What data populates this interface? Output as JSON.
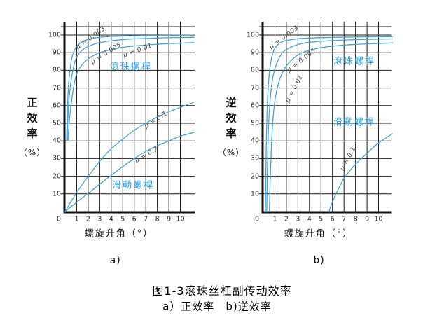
{
  "figure": {
    "caption_line1": "图1-3滚珠丝杠副传动效率",
    "caption_line2": "a）正效率　b)逆效率"
  },
  "colors": {
    "curve": "#45a3da",
    "screw_label": "#29a3e3",
    "grid": "#1c1c1c",
    "axis": "#111111",
    "tick_text": "#222222",
    "mu_text": "#3d3d3d"
  },
  "chart_data": [
    {
      "type": "line",
      "title": "a)",
      "sub_label": "a)",
      "ylabel": "正效率（%）",
      "ylabel_chars": [
        "正",
        "效",
        "率"
      ],
      "ylabel_unit": "（%）",
      "xlabel": "螺旋升角（°）",
      "x_ticks": [
        "0",
        "1",
        "2",
        "3",
        "4",
        "5",
        "6",
        "7",
        "8",
        "9",
        "10"
      ],
      "y_ticks": [
        "10",
        "20",
        "30",
        "40",
        "50",
        "60",
        "70",
        "80",
        "90",
        "100"
      ],
      "xlim": [
        0,
        11.2
      ],
      "ylim": [
        0,
        105
      ],
      "grid": true,
      "legend_position": "none",
      "series": [
        {
          "name": "μ = 0.003",
          "points": [
            [
              0.13,
              40
            ],
            [
              0.17,
              52
            ],
            [
              0.22,
              62
            ],
            [
              0.3,
              72
            ],
            [
              0.4,
              79
            ],
            [
              0.55,
              86
            ],
            [
              0.75,
              90.5
            ],
            [
              1,
              93.5
            ],
            [
              1.5,
              96.3
            ],
            [
              2,
              97.5
            ],
            [
              2.5,
              98.2
            ],
            [
              3,
              98.7
            ],
            [
              4,
              99.2
            ],
            [
              5,
              99.4
            ],
            [
              6,
              99.6
            ],
            [
              8,
              99.8
            ],
            [
              10,
              99.9
            ],
            [
              11.2,
              99.9
            ]
          ]
        },
        {
          "name": "μ = 0.005",
          "points": [
            [
              0.17,
              40
            ],
            [
              0.22,
              50
            ],
            [
              0.3,
              60
            ],
            [
              0.4,
              68
            ],
            [
              0.55,
              75.5
            ],
            [
              0.75,
              82.5
            ],
            [
              1,
              87.5
            ],
            [
              1.5,
              91.5
            ],
            [
              2,
              93.5
            ],
            [
              2.5,
              94.8
            ],
            [
              3,
              95.7
            ],
            [
              4,
              96.8
            ],
            [
              5,
              97.4
            ],
            [
              6,
              97.8
            ],
            [
              8,
              98.3
            ],
            [
              10,
              98.6
            ],
            [
              11.2,
              98.7
            ]
          ]
        },
        {
          "name": "μ = 0.01",
          "points": [
            [
              0.24,
              40
            ],
            [
              0.3,
              46
            ],
            [
              0.4,
              54
            ],
            [
              0.55,
              62
            ],
            [
              0.75,
              71
            ],
            [
              1,
              78
            ],
            [
              1.5,
              83.5
            ],
            [
              2,
              86.5
            ],
            [
              2.5,
              88.5
            ],
            [
              3,
              90
            ],
            [
              4,
              91.8
            ],
            [
              5,
              93
            ],
            [
              6,
              93.8
            ],
            [
              8,
              94.8
            ],
            [
              10,
              95.4
            ],
            [
              11.2,
              95.7
            ]
          ]
        },
        {
          "name": "μ = 0.1",
          "points": [
            [
              0,
              0
            ],
            [
              0.5,
              5.5
            ],
            [
              1,
              10.8
            ],
            [
              1.5,
              15.5
            ],
            [
              2,
              20
            ],
            [
              2.5,
              24.3
            ],
            [
              3,
              28.5
            ],
            [
              4,
              35.5
            ],
            [
              5,
              41
            ],
            [
              6,
              46
            ],
            [
              7,
              50
            ],
            [
              8,
              53.5
            ],
            [
              9,
              56.5
            ],
            [
              10,
              59
            ],
            [
              11.2,
              62
            ]
          ]
        },
        {
          "name": "μ = 0.2",
          "points": [
            [
              0,
              0
            ],
            [
              1,
              5.3
            ],
            [
              2,
              10.3
            ],
            [
              3,
              15.5
            ],
            [
              4,
              20.5
            ],
            [
              5,
              25.5
            ],
            [
              6,
              30
            ],
            [
              7,
              34
            ],
            [
              8,
              37.3
            ],
            [
              9,
              40
            ],
            [
              10,
              42.7
            ],
            [
              11.2,
              44.8
            ]
          ]
        }
      ],
      "series_labels": [
        {
          "text": "μ = 0.003",
          "x": 2.25,
          "y": 98.0,
          "rot": -36
        },
        {
          "text": "μ = 0.005",
          "x": 3.6,
          "y": 89.3,
          "rot": -33
        },
        {
          "text": "μ = 0.01",
          "x": 6.3,
          "y": 90.9,
          "rot": -20
        },
        {
          "text": "μ = 0.1",
          "x": 7.9,
          "y": 51.6,
          "rot": -33
        },
        {
          "text": "μ = 0.2",
          "x": 7.1,
          "y": 31.7,
          "rot": -30
        }
      ],
      "annotations": [
        {
          "text": "滾珠螺桿",
          "x": 5.7,
          "y": 81.7
        },
        {
          "text": "滑動螺桿",
          "x": 5.9,
          "y": 14.7
        }
      ]
    },
    {
      "type": "line",
      "title": "b)",
      "sub_label": "b)",
      "ylabel": "逆效率（%）",
      "ylabel_chars": [
        "逆",
        "效",
        "率"
      ],
      "ylabel_unit": "（%）",
      "xlabel": "螺旋升角（°）",
      "x_ticks": [
        "0",
        "1",
        "2",
        "3",
        "4",
        "5",
        "6",
        "7",
        "8",
        "9",
        "10"
      ],
      "y_ticks": [
        "10",
        "20",
        "30",
        "40",
        "50",
        "60",
        "70",
        "80",
        "90",
        "100"
      ],
      "xlim": [
        0,
        11.2
      ],
      "ylim": [
        0,
        105
      ],
      "grid": true,
      "legend_position": "none",
      "series": [
        {
          "name": "μ = 0.003",
          "points": [
            [
              0.18,
              0
            ],
            [
              0.22,
              22
            ],
            [
              0.27,
              42
            ],
            [
              0.33,
              57
            ],
            [
              0.42,
              70
            ],
            [
              0.55,
              80
            ],
            [
              0.75,
              88
            ],
            [
              1,
              92.5
            ],
            [
              1.5,
              95.8
            ],
            [
              2,
              96.9
            ],
            [
              3,
              97.9
            ],
            [
              4,
              98.3
            ],
            [
              6,
              98.7
            ],
            [
              8,
              98.9
            ],
            [
              10,
              99
            ],
            [
              11.2,
              99.1
            ]
          ]
        },
        {
          "name": "μ = 0.005",
          "points": [
            [
              0.29,
              0
            ],
            [
              0.34,
              20
            ],
            [
              0.4,
              38
            ],
            [
              0.48,
              52
            ],
            [
              0.6,
              64
            ],
            [
              0.78,
              74
            ],
            [
              1,
              81
            ],
            [
              1.5,
              88.5
            ],
            [
              2,
              91.8
            ],
            [
              3,
              94.6
            ],
            [
              4,
              95.9
            ],
            [
              6,
              96.9
            ],
            [
              8,
              97.4
            ],
            [
              10,
              97.7
            ],
            [
              11.2,
              97.8
            ]
          ]
        },
        {
          "name": "μ = 0.01",
          "points": [
            [
              0.52,
              0
            ],
            [
              0.58,
              14
            ],
            [
              0.66,
              30
            ],
            [
              0.76,
              45
            ],
            [
              0.9,
              57
            ],
            [
              1.1,
              66.5
            ],
            [
              1.4,
              74.5
            ],
            [
              1.8,
              80.5
            ],
            [
              2.2,
              84
            ],
            [
              2.8,
              87.8
            ],
            [
              3.5,
              90.3
            ],
            [
              4.5,
              92.2
            ],
            [
              5.5,
              93.3
            ],
            [
              7,
              94.3
            ],
            [
              9,
              95
            ],
            [
              11.2,
              95.5
            ]
          ]
        },
        {
          "name": "μ = 0.1",
          "points": [
            [
              5.7,
              0
            ],
            [
              6,
              5.5
            ],
            [
              6.5,
              12.5
            ],
            [
              7,
              18.8
            ],
            [
              7.5,
              23
            ],
            [
              8,
              26.8
            ],
            [
              8.5,
              30
            ],
            [
              9,
              33
            ],
            [
              9.5,
              36
            ],
            [
              10,
              38.8
            ],
            [
              10.6,
              41.5
            ],
            [
              11.2,
              44
            ]
          ]
        }
      ],
      "series_labels": [
        {
          "text": "μ = 0.003",
          "x": 1.85,
          "y": 98.4,
          "rot": -36
        },
        {
          "text": "μ = 0.005",
          "x": 3.35,
          "y": 85.3,
          "rot": -38
        },
        {
          "text": "μ = 0.01",
          "x": 2.75,
          "y": 69.4,
          "rot": -62
        },
        {
          "text": "μ = 0.1",
          "x": 7.4,
          "y": 29.8,
          "rot": -62
        }
      ],
      "annotations": [
        {
          "text": "滾珠螺桿",
          "x": 7.9,
          "y": 84.9
        },
        {
          "text": "滑動螺桿",
          "x": 7.9,
          "y": 50.4
        }
      ]
    }
  ]
}
